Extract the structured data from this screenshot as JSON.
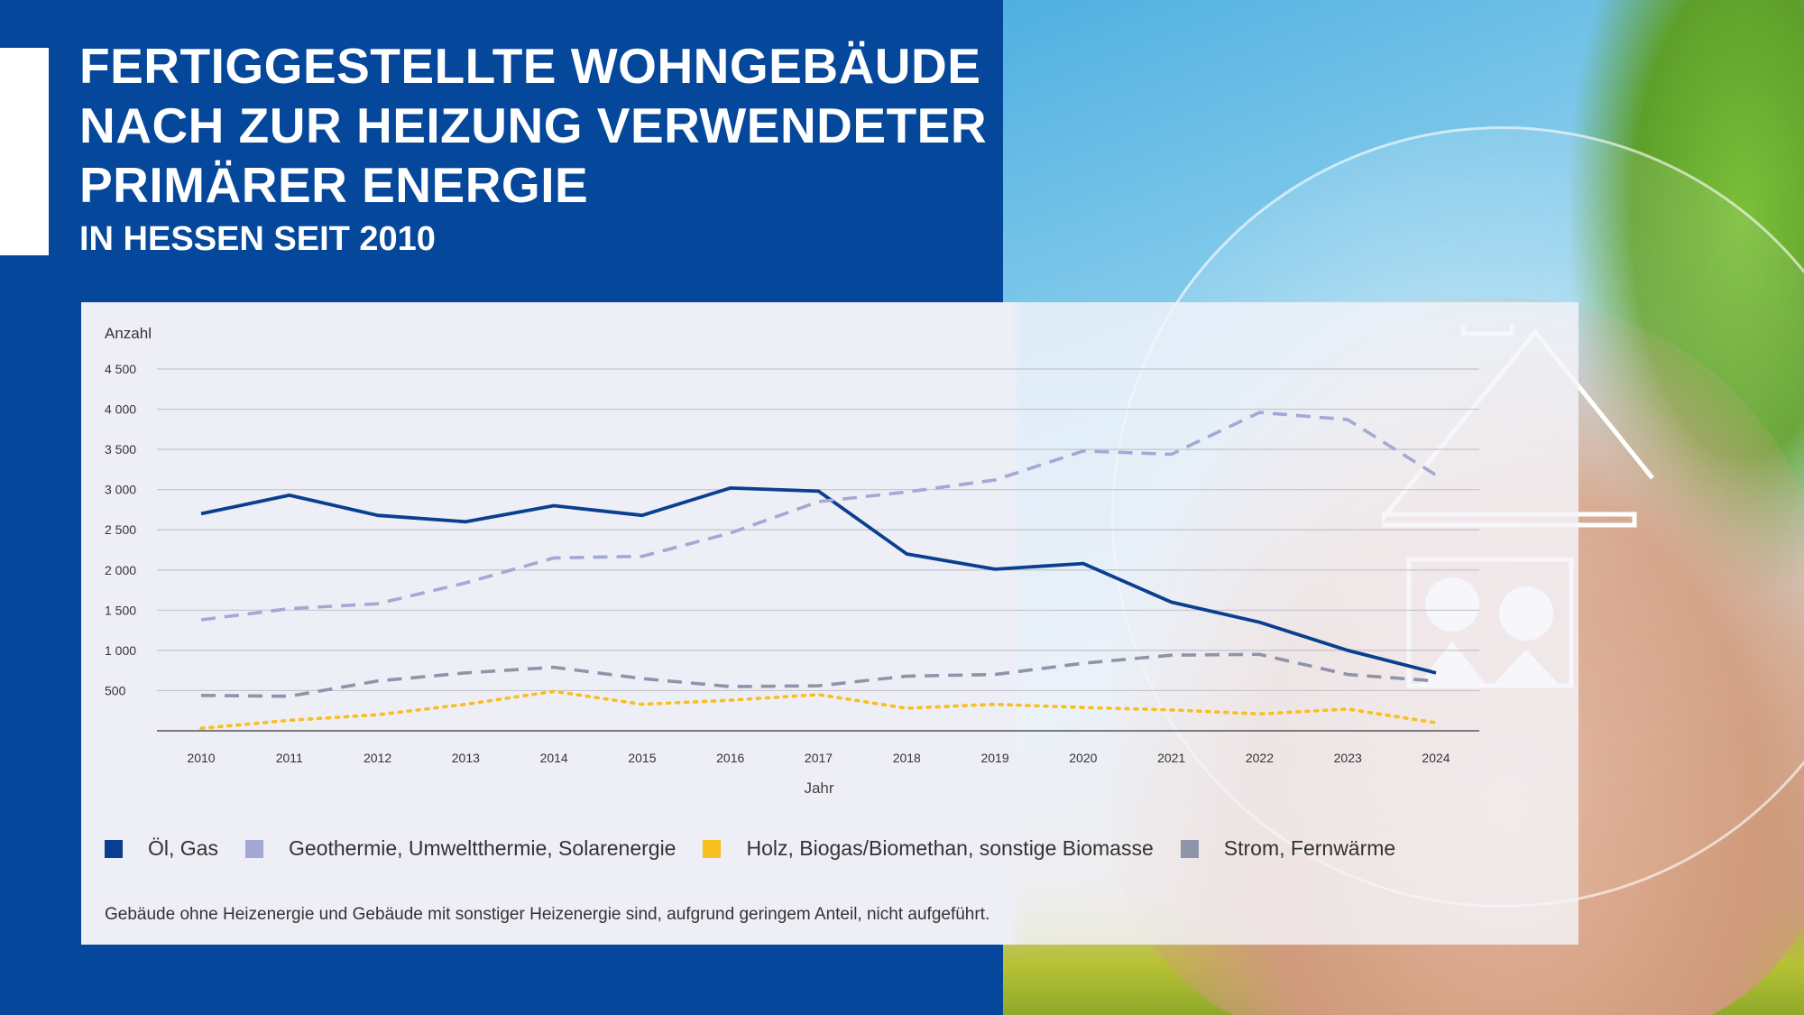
{
  "header": {
    "title_lines": [
      "FERTIGGESTELLTE WOHNGEBÄUDE",
      "NACH ZUR HEIZUNG VERWENDETER",
      "PRIMÄRER ENERGIE"
    ],
    "subtitle": "IN HESSEN SEIT 2010"
  },
  "chart_data": {
    "type": "line",
    "title": "FERTIGGESTELLTE WOHNGEBÄUDE NACH ZUR HEIZUNG VERWENDETER PRIMÄRER ENERGIE",
    "subtitle": "IN HESSEN SEIT 2010",
    "ylabel": "Anzahl",
    "xlabel": "Jahr",
    "ylim": [
      0,
      4500
    ],
    "yticks": [
      500,
      1000,
      1500,
      2000,
      2500,
      3000,
      3500,
      4000,
      4500
    ],
    "ytick_labels": [
      "500",
      "1 000",
      "1 500",
      "2 000",
      "2 500",
      "3 000",
      "3 500",
      "4 000",
      "4 500"
    ],
    "x": [
      "2010",
      "2011",
      "2012",
      "2013",
      "2014",
      "2015",
      "2016",
      "2017",
      "2018",
      "2019",
      "2020",
      "2021",
      "2022",
      "2023",
      "2024"
    ],
    "grid": true,
    "legend_position": "bottom",
    "series": [
      {
        "name": "Öl, Gas",
        "color": "#0a3f8f",
        "style": "solid",
        "values": [
          2700,
          2930,
          2680,
          2600,
          2800,
          2680,
          3020,
          2980,
          2200,
          2010,
          2080,
          1600,
          1350,
          1000,
          720
        ]
      },
      {
        "name": "Geothermie, Umweltthermie, Solarenergie",
        "color": "#a4a8d4",
        "style": "dashed",
        "values": [
          1380,
          1520,
          1580,
          1840,
          2150,
          2170,
          2460,
          2850,
          2970,
          3120,
          3480,
          3440,
          3960,
          3870,
          3180
        ]
      },
      {
        "name": "Holz, Biogas/Biomethan, sonstige Biomasse",
        "color": "#f8bf1e",
        "style": "dotted",
        "values": [
          30,
          130,
          200,
          330,
          490,
          330,
          380,
          450,
          280,
          330,
          290,
          260,
          210,
          270,
          100
        ]
      },
      {
        "name": "Strom, Fernwärme",
        "color": "#8e94a9",
        "style": "dashed",
        "values": [
          440,
          430,
          620,
          720,
          790,
          650,
          550,
          560,
          680,
          700,
          840,
          940,
          950,
          700,
          620
        ]
      }
    ],
    "footnote": "Gebäude ohne Heizenergie und Gebäude mit sonstiger Heizenergie sind, aufgrund geringem Anteil, nicht aufgeführt."
  }
}
